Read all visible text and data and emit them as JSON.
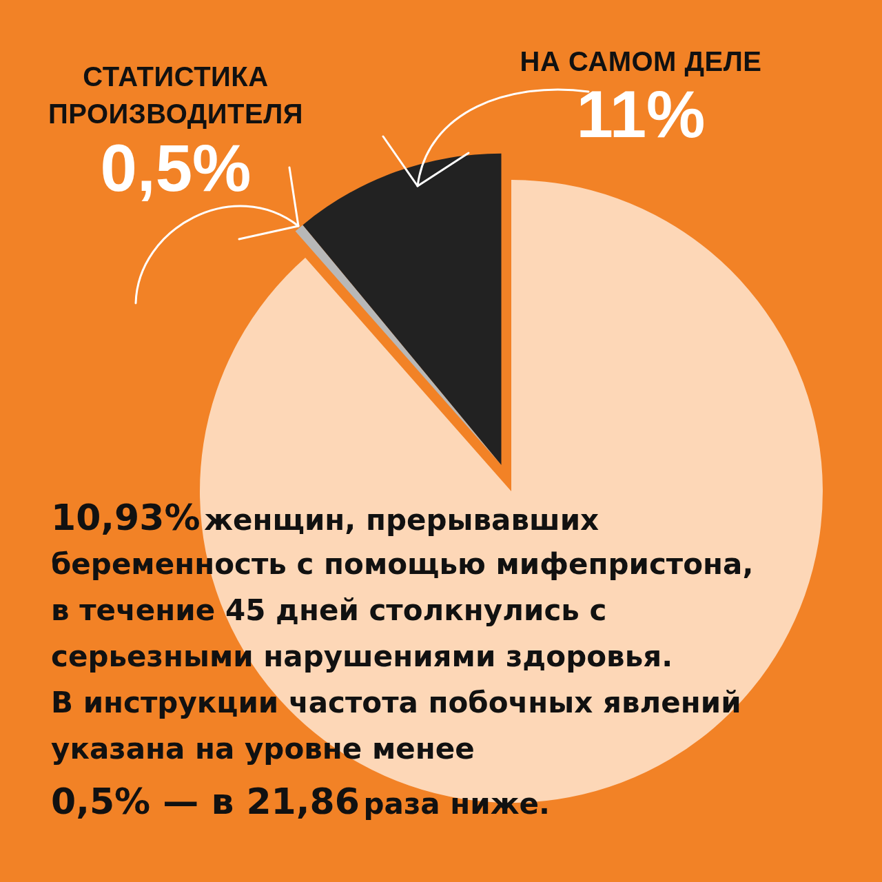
{
  "chart_data": {
    "type": "pie",
    "categories": [
      null,
      "СТАТИСТИКА ПРОИЗВОДИТЕЛЯ",
      "НА САМОМ ДЕЛЕ"
    ],
    "values": [
      88.5,
      0.5,
      11
    ],
    "value_labels": [
      null,
      "0,5%",
      "11%"
    ],
    "colors": [
      "#fdd7b7",
      "#b8b8b8",
      "#222222"
    ],
    "annotations": [
      "10,93%",
      "женщин, прерывавших",
      "беременность с помощью мифепристона,",
      "в течение 45 дней столкнулись с",
      "серьезными нарушениями здоровья.",
      "В инструкции частота побочных явлений",
      "указана на уровне менее",
      "0,5% — в 21,86",
      "раза ниже."
    ]
  }
}
